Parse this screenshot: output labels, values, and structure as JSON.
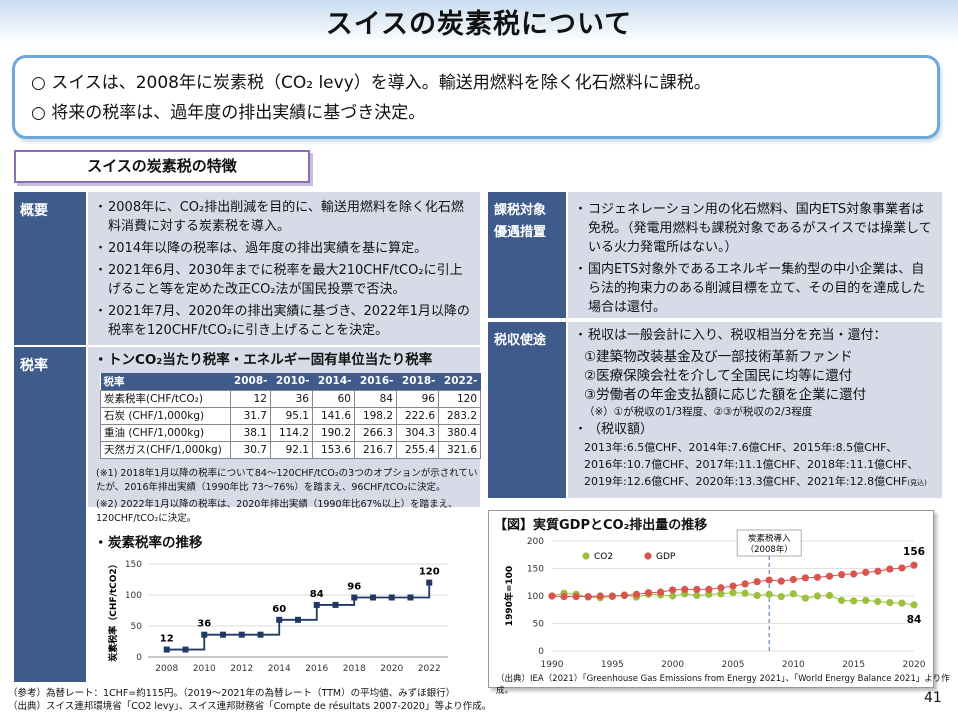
{
  "page_title": "スイスの炭素税について",
  "summary": {
    "line1": "○ スイスは、2008年に炭素税（CO₂ levy）を導入。輸送用燃料を除く化石燃料に課税。",
    "line2": "○ 将来の税率は、過年度の排出実績に基づき決定。"
  },
  "features_heading": "スイスの炭素税の特徴",
  "overview": {
    "label": "概要",
    "items": [
      "2008年に、CO₂排出削減を目的に、輸送用燃料を除く化石燃料消費に対する炭素税を導入。",
      "2014年以降の税率は、過年度の排出実績を基に算定。",
      "2021年6月、2030年までに税率を最大210CHF/tCO₂に引上げること等を定めた改正CO₂法が国民投票で否決。",
      "2021年7月、2020年の排出実績に基づき、2022年1月以降の税率を120CHF/tCO₂に引き上げることを決定。"
    ]
  },
  "rates": {
    "label": "税率",
    "table_intro": "トンCO₂当たり税率・エネルギー固有単位当たり税率",
    "table": {
      "headers": [
        "税率",
        "2008-",
        "2010-",
        "2014-",
        "2016-",
        "2018-",
        "2022-"
      ],
      "rows": [
        [
          "炭素税率(CHF/tCO₂)",
          "12",
          "36",
          "60",
          "84",
          "96",
          "120"
        ],
        [
          "石炭 (CHF/1,000kg)",
          "31.7",
          "95.1",
          "141.6",
          "198.2",
          "222.6",
          "283.2"
        ],
        [
          "重油 (CHF/1,000kg)",
          "38.1",
          "114.2",
          "190.2",
          "266.3",
          "304.3",
          "380.4"
        ],
        [
          "天然ガス(CHF/1,000kg)",
          "30.7",
          "92.1",
          "153.6",
          "216.7",
          "255.4",
          "321.6"
        ]
      ]
    },
    "note1": "(※1) 2018年1月以降の税率について84～120CHF/tCO₂の3つのオプションが示されていたが、2016年排出実績（1990年比 73～76%）を踏まえ、96CHF/tCO₂に決定。",
    "note2": "(※2) 2022年1月以降の税率は、2020年排出実績（1990年比67%以上）を踏まえ、120CHF/tCO₂に決定。",
    "trend_heading": "炭素税率の推移"
  },
  "exemption": {
    "label_1": "課税対象",
    "label_2": "優遇措置",
    "items": [
      "コジェネレーション用の化石燃料、国内ETS対象事業者は免税。（発電用燃料も課税対象であるがスイスでは操業している火力発電所はない。）",
      "国内ETS対象外であるエネルギー集約型の中小企業は、自ら法的拘束力のある削減目標を立て、その目的を達成した場合は還付。"
    ]
  },
  "revenue": {
    "label": "税収使途",
    "intro": "税収は一般会計に入り、税収相当分を充当・還付：",
    "uses": [
      "①建築物改装基金及び一部技術革新ファンド",
      "②医療保険会社を介して全国民に均等に還付",
      "③労働者の年金支払額に応じた額を企業に還付"
    ],
    "share_note": "（※）①が税収の1/3程度、②③が税収の2/3程度",
    "amount_heading": "（税収額）",
    "amounts": [
      "2013年:6.5億CHF、2014年:7.6億CHF、2015年:8.5億CHF、",
      "2016年:10.7億CHF、2017年:11.1億CHF、2018年:11.1億CHF、",
      "2019年:12.6億CHF、2020年:13.3億CHF、2021年:12.8億CHF"
    ],
    "estimate_tag": "(見込)"
  },
  "chart_data": [
    {
      "type": "line",
      "title": "",
      "xlabel": "",
      "ylabel": "炭素税率（CHF/tCO2）",
      "xlim": [
        2007,
        2023
      ],
      "ylim": [
        0,
        150
      ],
      "xticks": [
        2008,
        2010,
        2012,
        2014,
        2016,
        2018,
        2020,
        2022
      ],
      "yticks": [
        0,
        50,
        100,
        150
      ],
      "x": [
        2008,
        2009,
        2010,
        2011,
        2012,
        2013,
        2014,
        2015,
        2016,
        2017,
        2018,
        2019,
        2020,
        2021,
        2022
      ],
      "values": [
        12,
        12,
        36,
        36,
        36,
        36,
        60,
        60,
        84,
        84,
        96,
        96,
        96,
        96,
        120
      ],
      "labels": [
        {
          "x": 2008,
          "text": "12"
        },
        {
          "x": 2010,
          "text": "36"
        },
        {
          "x": 2014,
          "text": "60"
        },
        {
          "x": 2016,
          "text": "84"
        },
        {
          "x": 2018,
          "text": "96"
        },
        {
          "x": 2022,
          "text": "120"
        }
      ],
      "color": "#1f3864"
    },
    {
      "type": "line",
      "title": "【図】実質GDPとCO₂排出量の推移",
      "xlabel": "",
      "ylabel": "1990年=100",
      "xlim": [
        1990,
        2020
      ],
      "ylim": [
        0,
        200
      ],
      "xticks": [
        1990,
        1995,
        2000,
        2005,
        2010,
        2015,
        2020
      ],
      "yticks": [
        0,
        50,
        100,
        150,
        200
      ],
      "grid": true,
      "legend": "top-left",
      "annotation": {
        "x": 2008,
        "text_1": "炭素税導入",
        "text_2": "（2008年）"
      },
      "end_labels": {
        "GDP": "156",
        "CO2": "84"
      },
      "x": [
        1990,
        1991,
        1992,
        1993,
        1994,
        1995,
        1996,
        1997,
        1998,
        1999,
        2000,
        2001,
        2002,
        2003,
        2004,
        2005,
        2006,
        2007,
        2008,
        2009,
        2010,
        2011,
        2012,
        2013,
        2014,
        2015,
        2016,
        2017,
        2018,
        2019,
        2020
      ],
      "series": [
        {
          "name": "CO2",
          "color": "#9cbf3e",
          "values": [
            100,
            105,
            103,
            98,
            97,
            99,
            102,
            98,
            103,
            102,
            100,
            104,
            101,
            103,
            104,
            106,
            105,
            101,
            103,
            99,
            104,
            96,
            100,
            101,
            92,
            91,
            92,
            90,
            88,
            87,
            84
          ]
        },
        {
          "name": "GDP",
          "color": "#d9534f",
          "values": [
            100,
            99,
            99,
            99,
            100,
            100,
            101,
            103,
            106,
            107,
            111,
            112,
            112,
            112,
            115,
            118,
            122,
            126,
            129,
            127,
            130,
            133,
            134,
            136,
            139,
            140,
            143,
            145,
            149,
            151,
            156
          ]
        }
      ]
    }
  ],
  "chart_source": "（出典）IEA（2021）「Greenhouse Gas Emissions from Energy 2021」、「World Energy Balance 2021」より作成。",
  "footer": {
    "line1": "（参考）為替レート：1CHF=約115円。（2019～2021年の為替レート（TTM）の平均値、みずほ銀行）",
    "line2": "（出典）スイス連邦環境省「CO2 levy」、スイス連邦財務省「Compte de résultats 2007-2020」等より作成。"
  },
  "page_number": "41"
}
